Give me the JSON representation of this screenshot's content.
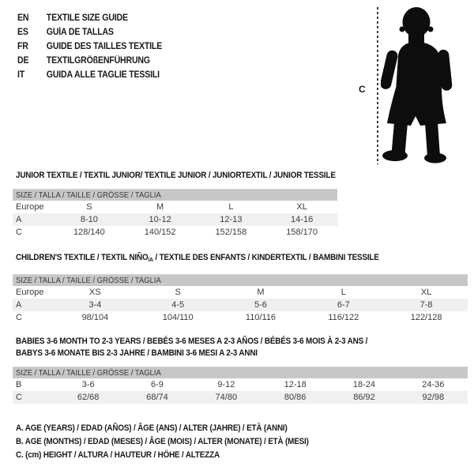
{
  "header": {
    "languages": [
      {
        "code": "EN",
        "label": "TEXTILE SIZE GUIDE"
      },
      {
        "code": "ES",
        "label": "GUÍA DE TALLAS"
      },
      {
        "code": "FR",
        "label": "GUIDE DES TAILLES TEXTILE"
      },
      {
        "code": "DE",
        "label": "TEXTILGRÖßENFÜHRUNG"
      },
      {
        "code": "IT",
        "label": "GUIDA ALLE TAGLIE TESSILI"
      }
    ]
  },
  "figure": {
    "measure_label": "C"
  },
  "tables": [
    {
      "id": "junior-textile",
      "title_lines": [
        [
          {
            "text": "JUNIOR TEXTILE / TEXTIL JUNIOR/ TEXTILE JUNIOR / JUNIORTEXTIL / JUNIOR TESSILE"
          }
        ]
      ],
      "size_header": "SIZE / TALLA / TAILLE / GRÖSSE / TAGLIA",
      "rows": [
        [
          "Europe",
          "S",
          "M",
          "L",
          "XL"
        ],
        [
          "A",
          "8-10",
          "10-12",
          "12-13",
          "14-16"
        ],
        [
          "C",
          "128/140",
          "140/152",
          "152/158",
          "158/170"
        ]
      ]
    },
    {
      "id": "childrens-textile",
      "title_lines": [
        [
          {
            "text": "CHILDREN'S TEXTILE / TEXTIL NIÑO"
          },
          {
            "text": "/A",
            "sub": true
          },
          {
            "text": " / TEXTILE DES ENFANTS / KINDERTEXTIL / BAMBINI TESSILE"
          }
        ]
      ],
      "size_header": "SIZE / TALLA / TAILLE / GRÖSSE / TAGLIA",
      "rows": [
        [
          "Europe",
          "XS",
          "S",
          "M",
          "L",
          "XL"
        ],
        [
          "A",
          "3-4",
          "4-5",
          "5-6",
          "6-7",
          "7-8"
        ],
        [
          "C",
          "98/104",
          "104/110",
          "110/116",
          "116/122",
          "122/128"
        ]
      ]
    },
    {
      "id": "babies-textile",
      "title_lines": [
        [
          {
            "text": "BABIES 3-6 MONTH TO 2-3 YEARS / BEBÉS 3-6 MESES A 2-3 AÑOS / BÉBÉS 3-6 MOIS À 2-3 ANS /"
          }
        ],
        [
          {
            "text": "BABYS 3-6 MONATE BIS 2-3 JAHRE / BAMBINI 3-6 MESI A 2-3 ANNI"
          }
        ]
      ],
      "size_header": "SIZE / TALLA / TAILLE / GRÖSSE / TAGLIA",
      "rows": [
        [
          "B",
          "3-6",
          "6-9",
          "9-12",
          "12-18",
          "18-24",
          "24-36"
        ],
        [
          "C",
          "62/68",
          "68/74",
          "74/80",
          "80/86",
          "86/92",
          "92/98"
        ]
      ]
    }
  ],
  "notes": [
    "A. AGE (YEARS) / EDAD (AÑOS) / ÂGE (ANS) / ALTER (JAHRE) / ETÀ (ANNI)",
    "B. AGE (MONTHS) / EDAD (MESES) / ÂGE (MOIS) / ALTER (MONATE) / ETÀ (MESI)",
    "C. (cm) HEIGHT / ALTURA / HAUTEUR / HÖHE / ALTEZZA"
  ],
  "colors": {
    "size_bar_bg": "#c7c7c7",
    "row_alt_bg": "#f0f0f0",
    "text": "#1a1a1a",
    "table_text": "#3c3c3c",
    "silhouette": "#0d0d0d"
  }
}
